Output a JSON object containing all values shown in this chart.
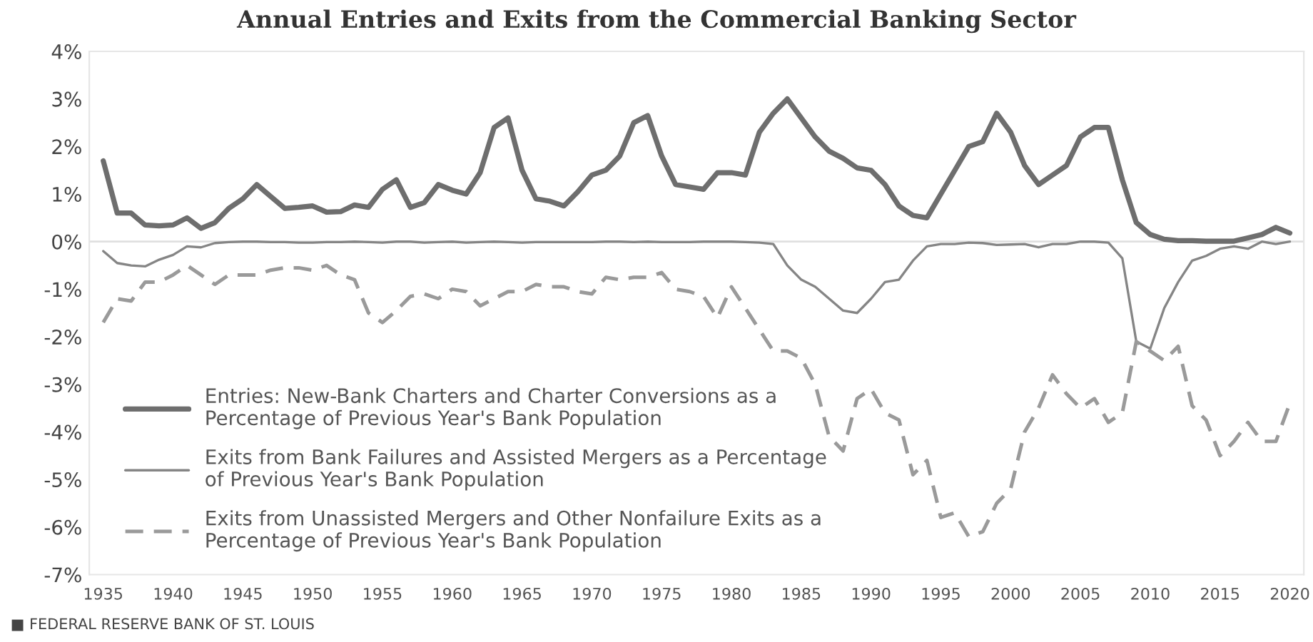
{
  "chart_data": {
    "type": "line",
    "title": "Annual Entries and Exits from the Commercial Banking Sector",
    "x": [
      1935,
      1936,
      1937,
      1938,
      1939,
      1940,
      1941,
      1942,
      1943,
      1944,
      1945,
      1946,
      1947,
      1948,
      1949,
      1950,
      1951,
      1952,
      1953,
      1954,
      1955,
      1956,
      1957,
      1958,
      1959,
      1960,
      1961,
      1962,
      1963,
      1964,
      1965,
      1966,
      1967,
      1968,
      1969,
      1970,
      1971,
      1972,
      1973,
      1974,
      1975,
      1976,
      1977,
      1978,
      1979,
      1980,
      1981,
      1982,
      1983,
      1984,
      1985,
      1986,
      1987,
      1988,
      1989,
      1990,
      1991,
      1992,
      1993,
      1994,
      1995,
      1996,
      1997,
      1998,
      1999,
      2000,
      2001,
      2002,
      2003,
      2004,
      2005,
      2006,
      2007,
      2008,
      2009,
      2010,
      2011,
      2012,
      2013,
      2014,
      2015,
      2016,
      2017,
      2018,
      2019,
      2020
    ],
    "series": [
      {
        "name": "Entries: New-Bank Charters and Charter Conversions as a Percentage of Previous Year's Bank Population",
        "color": "#6e6e6e",
        "line_style": "solid",
        "values": [
          1.7,
          0.6,
          0.6,
          0.35,
          0.33,
          0.35,
          0.5,
          0.28,
          0.4,
          0.7,
          0.9,
          1.2,
          0.95,
          0.7,
          0.72,
          0.75,
          0.62,
          0.63,
          0.77,
          0.72,
          1.1,
          1.3,
          0.72,
          0.82,
          1.2,
          1.08,
          1.0,
          1.45,
          2.4,
          2.6,
          1.5,
          0.9,
          0.85,
          0.75,
          1.05,
          1.4,
          1.5,
          1.8,
          2.5,
          2.65,
          1.8,
          1.2,
          1.15,
          1.1,
          1.45,
          1.45,
          1.4,
          2.3,
          2.7,
          3.0,
          2.6,
          2.2,
          1.9,
          1.75,
          1.55,
          1.5,
          1.2,
          0.75,
          0.55,
          0.5,
          1.0,
          1.5,
          2.0,
          2.1,
          2.7,
          2.3,
          1.6,
          1.2,
          1.4,
          1.6,
          2.2,
          2.4,
          2.4,
          1.3,
          0.4,
          0.15,
          0.05,
          0.02,
          0.02,
          0.01,
          0.01,
          0.01,
          0.08,
          0.15,
          0.3,
          0.18
        ]
      },
      {
        "name": "Exits from Bank Failures and Assisted Mergers as a Percentage of Previous Year's Bank Population",
        "color": "#858585",
        "line_style": "solid",
        "values": [
          -0.2,
          -0.45,
          -0.5,
          -0.52,
          -0.38,
          -0.28,
          -0.1,
          -0.12,
          -0.03,
          -0.01,
          0,
          0,
          -0.01,
          -0.01,
          -0.02,
          -0.02,
          -0.01,
          -0.01,
          0,
          -0.01,
          -0.02,
          0,
          0,
          -0.02,
          -0.01,
          0,
          -0.02,
          -0.01,
          0,
          -0.01,
          -0.02,
          -0.01,
          -0.01,
          -0.01,
          -0.01,
          -0.01,
          0,
          0,
          -0.01,
          0,
          -0.01,
          -0.01,
          -0.01,
          0,
          0,
          0,
          -0.01,
          -0.02,
          -0.05,
          -0.5,
          -0.8,
          -0.95,
          -1.2,
          -1.45,
          -1.5,
          -1.2,
          -0.85,
          -0.8,
          -0.4,
          -0.1,
          -0.05,
          -0.05,
          -0.02,
          -0.03,
          -0.07,
          -0.06,
          -0.05,
          -0.12,
          -0.05,
          -0.05,
          0,
          0,
          -0.02,
          -0.35,
          -2.1,
          -2.25,
          -1.4,
          -0.85,
          -0.4,
          -0.3,
          -0.15,
          -0.1,
          -0.15,
          0,
          -0.05,
          0
        ]
      },
      {
        "name": "Exits from Unassisted Mergers and Other Nonfailure Exits as a Percentage of Previous Year's Bank Population",
        "color": "#9a9a9a",
        "line_style": "dashed",
        "values": [
          -1.7,
          -1.2,
          -1.25,
          -0.85,
          -0.85,
          -0.7,
          -0.5,
          -0.7,
          -0.9,
          -0.7,
          -0.7,
          -0.7,
          -0.6,
          -0.55,
          -0.55,
          -0.6,
          -0.5,
          -0.7,
          -0.8,
          -1.5,
          -1.7,
          -1.45,
          -1.15,
          -1.1,
          -1.2,
          -1.0,
          -1.05,
          -1.35,
          -1.2,
          -1.05,
          -1.05,
          -0.9,
          -0.95,
          -0.95,
          -1.05,
          -1.1,
          -0.75,
          -0.8,
          -0.75,
          -0.75,
          -0.65,
          -1.0,
          -1.05,
          -1.15,
          -1.6,
          -0.95,
          -1.4,
          -1.85,
          -2.3,
          -2.3,
          -2.45,
          -3.0,
          -4.1,
          -4.4,
          -3.3,
          -3.1,
          -3.6,
          -3.75,
          -4.9,
          -4.6,
          -5.8,
          -5.7,
          -6.2,
          -6.1,
          -5.5,
          -5.2,
          -4.0,
          -3.5,
          -2.8,
          -3.2,
          -3.5,
          -3.3,
          -3.8,
          -3.6,
          -2.1,
          -2.3,
          -2.5,
          -2.2,
          -3.45,
          -3.75,
          -4.5,
          -4.2,
          -3.8,
          -4.2,
          -4.2,
          -3.4
        ]
      }
    ],
    "xlim": [
      1934,
      2021
    ],
    "xticks": [
      1935,
      1940,
      1945,
      1950,
      1955,
      1960,
      1965,
      1970,
      1975,
      1980,
      1985,
      1990,
      1995,
      2000,
      2005,
      2010,
      2015,
      2020
    ],
    "ylim": [
      -7,
      4
    ],
    "yticks": [
      {
        "value": -7,
        "label": "-7%"
      },
      {
        "value": -6,
        "label": "-6%"
      },
      {
        "value": -5,
        "label": "-5%"
      },
      {
        "value": -4,
        "label": "-4%"
      },
      {
        "value": -3,
        "label": "-3%"
      },
      {
        "value": -2,
        "label": "-2%"
      },
      {
        "value": -1,
        "label": "-1%"
      },
      {
        "value": 0,
        "label": "0%"
      },
      {
        "value": 1,
        "label": "1%"
      },
      {
        "value": 2,
        "label": "2%"
      },
      {
        "value": 3,
        "label": "3%"
      },
      {
        "value": 4,
        "label": "4%"
      }
    ],
    "ref_lines": [
      {
        "axis": "y",
        "value": 0,
        "color": "#e0e0e0"
      }
    ],
    "grid": false,
    "legend": "bottom left",
    "marker": "none",
    "annotations": [
      "■ FEDERAL RESERVE BANK OF ST. LOUIS"
    ]
  }
}
